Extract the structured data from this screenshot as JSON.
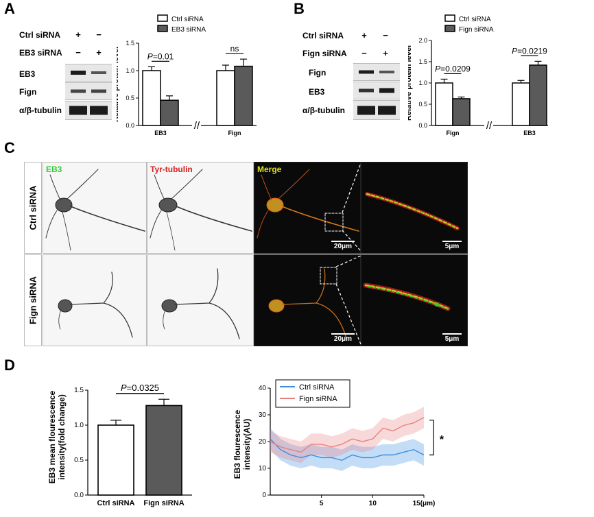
{
  "panel_labels": {
    "a": "A",
    "b": "B",
    "c": "C",
    "d": "D"
  },
  "blot_a": {
    "rows": [
      "Ctrl siRNA",
      "EB3 siRNA",
      "EB3",
      "Fign",
      "α/β-tubulin"
    ],
    "signs": {
      "ctrl": [
        "+",
        "−"
      ],
      "eb3": [
        "−",
        "+"
      ]
    }
  },
  "blot_b": {
    "rows": [
      "Ctrl siRNA",
      "Fign siRNA",
      "Fign",
      "EB3",
      "α/β-tubulin"
    ],
    "signs": {
      "ctrl": [
        "+",
        "−"
      ],
      "fign": [
        "−",
        "+"
      ]
    }
  },
  "chart_data": [
    {
      "id": "A-bar",
      "type": "bar",
      "ylabel": "Relative  protein level",
      "ylim": [
        0,
        1.5
      ],
      "yticks": [
        "0.0",
        "0.5",
        "1.0",
        "1.5"
      ],
      "categories": [
        "EB3",
        "Fign"
      ],
      "series": [
        {
          "name": "Ctrl siRNA",
          "values": [
            1.0,
            1.0
          ],
          "errors": [
            0.07,
            0.1
          ],
          "color": "#ffffff"
        },
        {
          "name": "EB3 siRNA",
          "values": [
            0.46,
            1.08
          ],
          "errors": [
            0.08,
            0.13
          ],
          "color": "#5a5a5a"
        }
      ],
      "annotations": [
        "P=0.01",
        "ns"
      ],
      "axis_break": "//"
    },
    {
      "id": "B-bar",
      "type": "bar",
      "ylabel": "Relative  protein level",
      "ylim": [
        0,
        2.0
      ],
      "yticks": [
        "0.0",
        "0.5",
        "1.0",
        "1.5",
        "2.0"
      ],
      "categories": [
        "Fign",
        "EB3"
      ],
      "series": [
        {
          "name": "Ctrl siRNA",
          "values": [
            1.0,
            1.0
          ],
          "errors": [
            0.09,
            0.06
          ],
          "color": "#ffffff"
        },
        {
          "name": "Fign siRNA",
          "values": [
            0.63,
            1.42
          ],
          "errors": [
            0.04,
            0.09
          ],
          "color": "#5a5a5a"
        }
      ],
      "annotations": [
        "P=0.0209",
        "P=0.0219"
      ],
      "axis_break": "//"
    },
    {
      "id": "D-bar",
      "type": "bar",
      "ylabel": "EB3 mean flourescence intensity(fold change)",
      "ylim": [
        0,
        1.5
      ],
      "yticks": [
        "0.0",
        "0.5",
        "1.0",
        "1.5"
      ],
      "categories": [
        "Ctrl siRNA",
        "Fign siRNA"
      ],
      "values": [
        1.0,
        1.28
      ],
      "errors": [
        0.07,
        0.09
      ],
      "colors": [
        "#ffffff",
        "#5a5a5a"
      ],
      "annotations": [
        "P=0.0325"
      ]
    },
    {
      "id": "D-line",
      "type": "line",
      "ylabel": "EB3 flourescence intensity(AU)",
      "xlim": [
        0,
        15
      ],
      "ylim": [
        0,
        40
      ],
      "xticks": [
        "5",
        "10",
        "15(μm)"
      ],
      "yticks": [
        "0",
        "10",
        "20",
        "30",
        "40"
      ],
      "series": [
        {
          "name": "Ctrl siRNA",
          "color": "#3b8ee0",
          "x": [
            0,
            1,
            2,
            3,
            4,
            5,
            6,
            7,
            8,
            9,
            10,
            11,
            12,
            13,
            14,
            15
          ],
          "y": [
            21,
            17,
            15,
            14,
            15,
            14,
            14,
            13,
            15,
            14,
            14,
            15,
            15,
            16,
            17,
            15
          ]
        },
        {
          "name": "Fign siRNA",
          "color": "#e88080",
          "x": [
            0,
            1,
            2,
            3,
            4,
            5,
            6,
            7,
            8,
            9,
            10,
            11,
            12,
            13,
            14,
            15
          ],
          "y": [
            20,
            18,
            17,
            16,
            19,
            19,
            18,
            19,
            21,
            20,
            21,
            25,
            24,
            26,
            27,
            29
          ]
        }
      ],
      "annotations": [
        "*"
      ]
    }
  ],
  "imaging": {
    "channels": [
      "EB3",
      "Tyr-tubulin",
      "Merge"
    ],
    "channel_colors": [
      "#2fcc2f",
      "#d42020",
      "#e0e020"
    ],
    "rows": [
      "Ctrl siRNA",
      "Fign siRNA"
    ],
    "scalebars": [
      "20μm",
      "5μm"
    ]
  }
}
